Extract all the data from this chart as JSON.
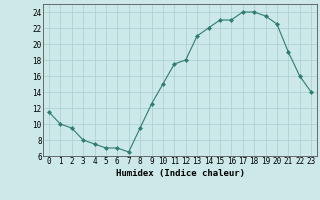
{
  "x": [
    0,
    1,
    2,
    3,
    4,
    5,
    6,
    7,
    8,
    9,
    10,
    11,
    12,
    13,
    14,
    15,
    16,
    17,
    18,
    19,
    20,
    21,
    22,
    23
  ],
  "y": [
    11.5,
    10,
    9.5,
    8,
    7.5,
    7,
    7,
    6.5,
    9.5,
    12.5,
    15,
    17.5,
    18,
    21,
    22,
    23,
    23,
    24,
    24,
    23.5,
    22.5,
    19,
    16,
    14
  ],
  "line_color": "#2e7d6e",
  "marker": "D",
  "marker_size": 2.0,
  "background_color": "#cce8e8",
  "grid_color": "#aacece",
  "xlabel": "Humidex (Indice chaleur)",
  "xlim": [
    -0.5,
    23.5
  ],
  "ylim": [
    6,
    25
  ],
  "yticks": [
    6,
    8,
    10,
    12,
    14,
    16,
    18,
    20,
    22,
    24
  ],
  "xticks": [
    0,
    1,
    2,
    3,
    4,
    5,
    6,
    7,
    8,
    9,
    10,
    11,
    12,
    13,
    14,
    15,
    16,
    17,
    18,
    19,
    20,
    21,
    22,
    23
  ],
  "xlabel_fontsize": 6.5,
  "tick_fontsize": 5.5
}
